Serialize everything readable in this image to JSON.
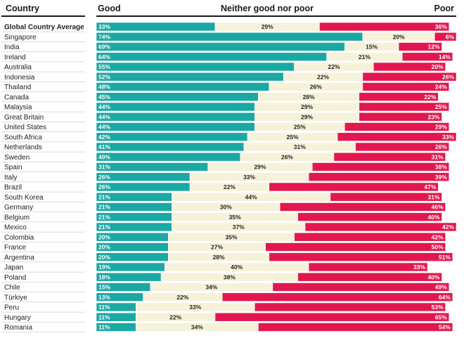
{
  "headers": {
    "country": "Country",
    "good": "Good",
    "neither": "Neither good nor poor",
    "poor": "Poor"
  },
  "colors": {
    "good": "#1aa8a4",
    "neither": "#f6f2da",
    "poor": "#e3174f",
    "good_text": "#ffffff",
    "neither_text": "#222222",
    "poor_text": "#ffffff",
    "row_border": "#b8b8b8"
  },
  "chart_data": {
    "type": "bar",
    "orientation": "horizontal",
    "stacked": true,
    "value_suffix": "%",
    "xlim": [
      0,
      100
    ],
    "categories": [
      "Global Country Average",
      "Singapore",
      "India",
      "Ireland",
      "Australia",
      "Indonesia",
      "Thailand",
      "Canada",
      "Malaysia",
      "Great Britain",
      "United States",
      "South Africa",
      "Netherlands",
      "Sweden",
      "Spain",
      "Italy",
      "Brazil",
      "South Korea",
      "Germany",
      "Belgium",
      "Mexico",
      "Colombia",
      "France",
      "Argentina",
      "Japan",
      "Poland",
      "Chile",
      "Türkiye",
      "Peru",
      "Hungary",
      "Romania"
    ],
    "series": [
      {
        "name": "Good",
        "values": [
          33,
          74,
          69,
          64,
          55,
          52,
          48,
          45,
          44,
          44,
          44,
          42,
          41,
          40,
          31,
          26,
          26,
          21,
          21,
          21,
          21,
          20,
          20,
          20,
          19,
          18,
          15,
          13,
          11,
          11,
          11
        ]
      },
      {
        "name": "Neither good nor poor",
        "values": [
          29,
          20,
          15,
          21,
          22,
          22,
          26,
          28,
          29,
          29,
          25,
          25,
          31,
          26,
          29,
          33,
          22,
          44,
          30,
          35,
          37,
          35,
          27,
          28,
          40,
          38,
          34,
          22,
          33,
          22,
          34
        ]
      },
      {
        "name": "Poor",
        "values": [
          36,
          6,
          12,
          14,
          20,
          26,
          24,
          22,
          25,
          23,
          29,
          33,
          26,
          31,
          38,
          39,
          47,
          31,
          46,
          40,
          42,
          42,
          50,
          51,
          33,
          40,
          49,
          64,
          53,
          65,
          54
        ]
      }
    ],
    "highlight_category": "Global Country Average"
  }
}
